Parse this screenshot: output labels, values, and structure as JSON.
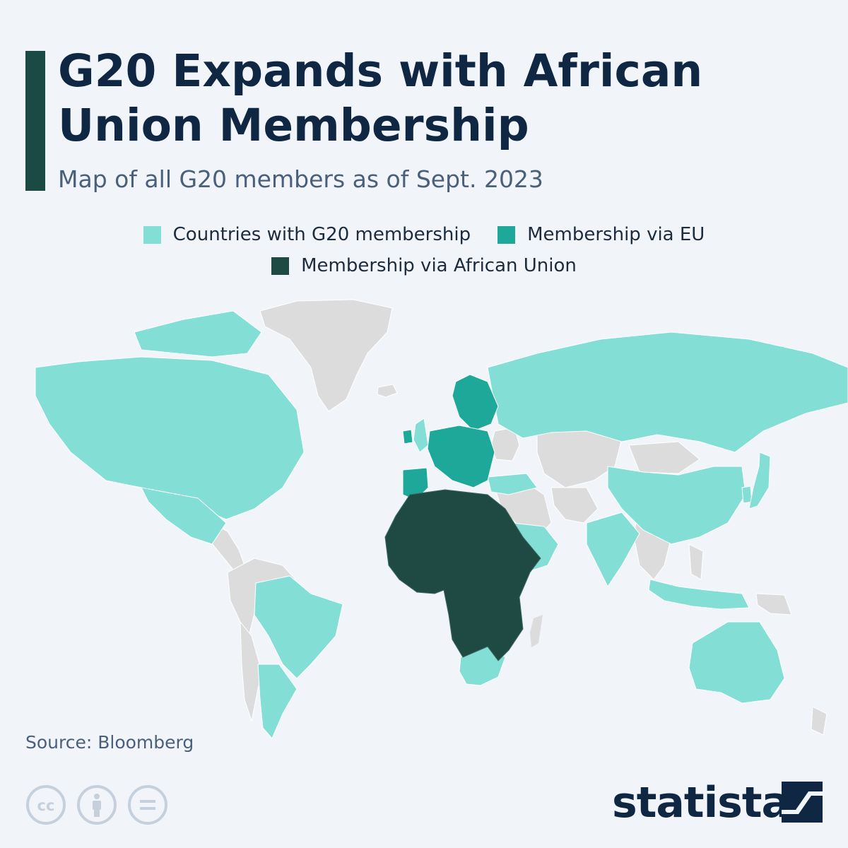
{
  "header": {
    "title": "G20 Expands with African Union Membership",
    "subtitle": "Map of all G20 members as of Sept. 2023"
  },
  "legend": [
    {
      "label": "Countries with G20 membership",
      "color": "#83dfd6"
    },
    {
      "label": "Membership via EU",
      "color": "#1ea89a"
    },
    {
      "label": "Membership via African Union",
      "color": "#1f4a43"
    }
  ],
  "colors": {
    "non_member": "#dcdcdc",
    "accent_bar": "#1b4a44",
    "title": "#0f2743"
  },
  "footer": {
    "source": "Source: Bloomberg",
    "brand": "statista",
    "license_icons": [
      "cc-icon",
      "attribution-icon",
      "no-derivatives-icon"
    ]
  }
}
